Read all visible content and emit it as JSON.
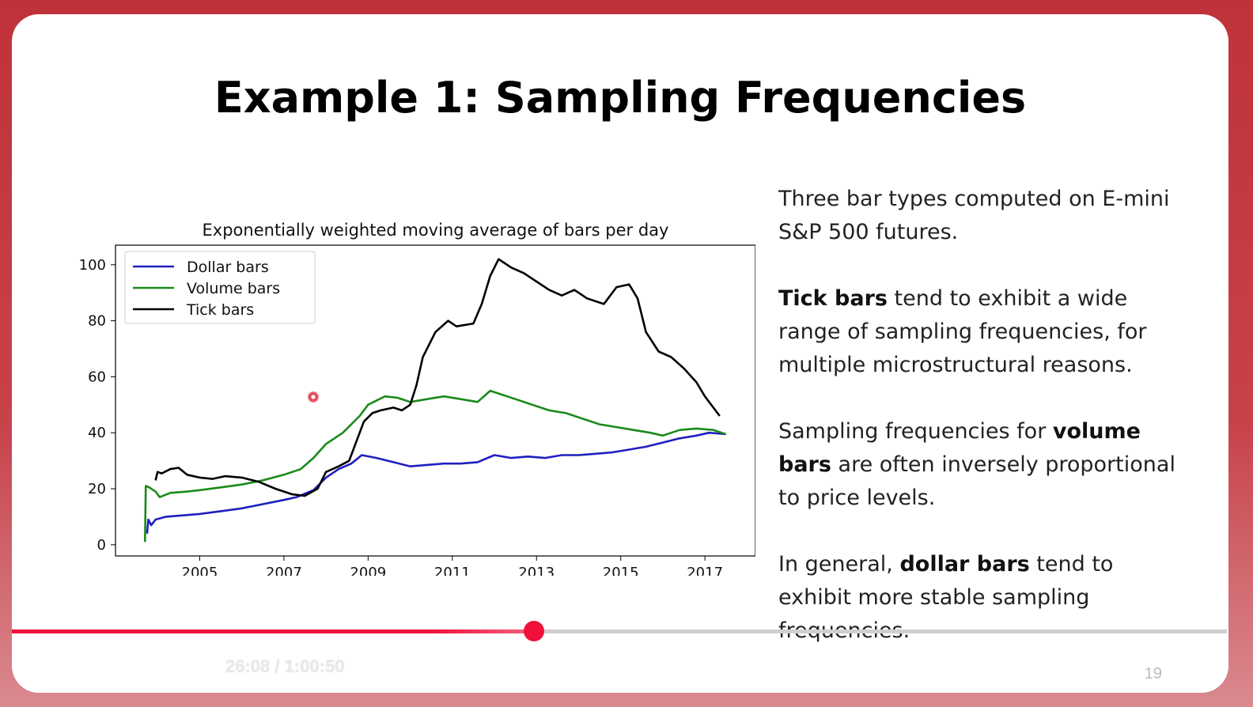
{
  "slide": {
    "title": "Example 1: Sampling Frequencies",
    "page_number": "19",
    "paragraphs": [
      [
        {
          "text": "Three bar types computed on E-mini S&P 500 futures.",
          "bold": false
        }
      ],
      [
        {
          "text": "Tick bars",
          "bold": true
        },
        {
          "text": " tend to exhibit a wide range of sampling frequencies, for multiple microstructural reasons.",
          "bold": false
        }
      ],
      [
        {
          "text": "Sampling frequencies for ",
          "bold": false
        },
        {
          "text": "volume bars",
          "bold": true
        },
        {
          "text": " are often inversely proportional to price levels.",
          "bold": false
        }
      ]
    ],
    "last_paragraph": [
      {
        "text": "In general, ",
        "bold": false
      },
      {
        "text": "dollar bars",
        "bold": true
      },
      {
        "text": " tend to exhibit more stable sampling frequencies.",
        "bold": false
      }
    ]
  },
  "player": {
    "time": "26:08 / 1:00:50",
    "progress": 0.43,
    "accent_color": "#f0103a"
  },
  "chart_data": {
    "type": "line",
    "title": "Exponentially weighted moving average of bars per day",
    "xlabel": "",
    "ylabel": "",
    "xlim": [
      2003.0,
      2018.2
    ],
    "ylim": [
      -4,
      107
    ],
    "xticks": [
      2005,
      2007,
      2009,
      2011,
      2013,
      2015,
      2017
    ],
    "yticks": [
      0,
      20,
      40,
      60,
      80,
      100
    ],
    "legend_position": "top-left",
    "grid": false,
    "series": [
      {
        "name": "Dollar bars",
        "color": "#1f1fbf",
        "points": [
          [
            2003.75,
            4
          ],
          [
            2003.78,
            9
          ],
          [
            2003.85,
            7
          ],
          [
            2003.95,
            9
          ],
          [
            2004.2,
            10
          ],
          [
            2004.6,
            10.5
          ],
          [
            2005.0,
            11
          ],
          [
            2005.5,
            12
          ],
          [
            2006.0,
            13
          ],
          [
            2006.5,
            14.5
          ],
          [
            2007.0,
            16
          ],
          [
            2007.3,
            17
          ],
          [
            2007.7,
            19.5
          ],
          [
            2008.0,
            24
          ],
          [
            2008.3,
            27
          ],
          [
            2008.6,
            29
          ],
          [
            2008.85,
            32
          ],
          [
            2009.2,
            31
          ],
          [
            2009.6,
            29.5
          ],
          [
            2010.0,
            28
          ],
          [
            2010.4,
            28.5
          ],
          [
            2010.8,
            29
          ],
          [
            2011.2,
            29
          ],
          [
            2011.6,
            29.5
          ],
          [
            2012.0,
            32
          ],
          [
            2012.4,
            31
          ],
          [
            2012.8,
            31.5
          ],
          [
            2013.2,
            31
          ],
          [
            2013.6,
            32
          ],
          [
            2014.0,
            32
          ],
          [
            2014.4,
            32.5
          ],
          [
            2014.8,
            33
          ],
          [
            2015.2,
            34
          ],
          [
            2015.6,
            35
          ],
          [
            2016.0,
            36.5
          ],
          [
            2016.4,
            38
          ],
          [
            2016.8,
            39
          ],
          [
            2017.1,
            40
          ],
          [
            2017.5,
            39.5
          ]
        ]
      },
      {
        "name": "Volume bars",
        "color": "#1a8a1a",
        "points": [
          [
            2003.7,
            1
          ],
          [
            2003.72,
            21
          ],
          [
            2003.8,
            20.5
          ],
          [
            2003.95,
            19
          ],
          [
            2004.05,
            17
          ],
          [
            2004.3,
            18.5
          ],
          [
            2004.7,
            19
          ],
          [
            2005.0,
            19.5
          ],
          [
            2005.5,
            20.5
          ],
          [
            2006.0,
            21.5
          ],
          [
            2006.5,
            23
          ],
          [
            2007.0,
            25
          ],
          [
            2007.4,
            27
          ],
          [
            2007.7,
            31
          ],
          [
            2008.0,
            36
          ],
          [
            2008.4,
            40
          ],
          [
            2008.8,
            46
          ],
          [
            2009.0,
            50
          ],
          [
            2009.4,
            53
          ],
          [
            2009.7,
            52.5
          ],
          [
            2010.0,
            51
          ],
          [
            2010.4,
            52
          ],
          [
            2010.8,
            53
          ],
          [
            2011.2,
            52
          ],
          [
            2011.6,
            51
          ],
          [
            2011.9,
            55
          ],
          [
            2012.1,
            54
          ],
          [
            2012.5,
            52
          ],
          [
            2012.9,
            50
          ],
          [
            2013.3,
            48
          ],
          [
            2013.7,
            47
          ],
          [
            2014.1,
            45
          ],
          [
            2014.5,
            43
          ],
          [
            2014.9,
            42
          ],
          [
            2015.3,
            41
          ],
          [
            2015.7,
            40
          ],
          [
            2016.0,
            39
          ],
          [
            2016.4,
            41
          ],
          [
            2016.8,
            41.5
          ],
          [
            2017.2,
            41
          ],
          [
            2017.5,
            39.5
          ]
        ]
      },
      {
        "name": "Tick bars",
        "color": "#000000",
        "points": [
          [
            2003.95,
            23
          ],
          [
            2004.0,
            26
          ],
          [
            2004.1,
            25.5
          ],
          [
            2004.3,
            27
          ],
          [
            2004.5,
            27.5
          ],
          [
            2004.7,
            25
          ],
          [
            2005.0,
            24
          ],
          [
            2005.3,
            23.5
          ],
          [
            2005.6,
            24.5
          ],
          [
            2006.0,
            24
          ],
          [
            2006.4,
            22.5
          ],
          [
            2006.8,
            20
          ],
          [
            2007.2,
            18
          ],
          [
            2007.5,
            17.5
          ],
          [
            2007.8,
            20
          ],
          [
            2008.0,
            26
          ],
          [
            2008.3,
            28
          ],
          [
            2008.55,
            30
          ],
          [
            2008.75,
            38
          ],
          [
            2008.9,
            44
          ],
          [
            2009.1,
            47
          ],
          [
            2009.3,
            48
          ],
          [
            2009.6,
            49
          ],
          [
            2009.8,
            48
          ],
          [
            2010.0,
            50
          ],
          [
            2010.15,
            57
          ],
          [
            2010.3,
            67
          ],
          [
            2010.6,
            76
          ],
          [
            2010.9,
            80
          ],
          [
            2011.1,
            78
          ],
          [
            2011.5,
            79
          ],
          [
            2011.7,
            86
          ],
          [
            2011.9,
            96
          ],
          [
            2012.1,
            102
          ],
          [
            2012.4,
            99
          ],
          [
            2012.7,
            97
          ],
          [
            2013.0,
            94
          ],
          [
            2013.3,
            91
          ],
          [
            2013.6,
            89
          ],
          [
            2013.9,
            91
          ],
          [
            2014.2,
            88
          ],
          [
            2014.6,
            86
          ],
          [
            2014.9,
            92
          ],
          [
            2015.2,
            93
          ],
          [
            2015.4,
            88
          ],
          [
            2015.6,
            76
          ],
          [
            2015.9,
            69
          ],
          [
            2016.2,
            67
          ],
          [
            2016.5,
            63
          ],
          [
            2016.8,
            58
          ],
          [
            2017.0,
            53
          ],
          [
            2017.2,
            49
          ],
          [
            2017.35,
            46
          ]
        ]
      }
    ]
  }
}
